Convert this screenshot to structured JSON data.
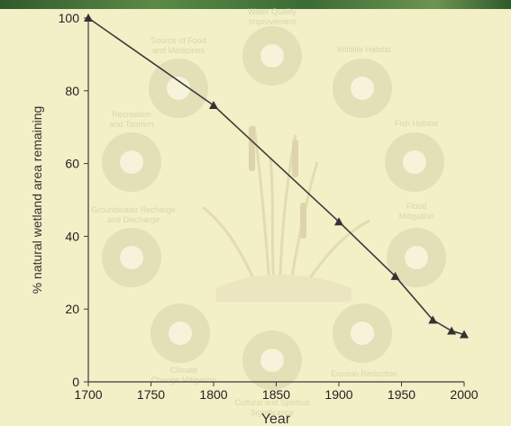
{
  "banner": {
    "color": "#3f6f38"
  },
  "colors": {
    "background": "#f3efc6",
    "line": "#3a3a3a",
    "icon_fill": "#e3dfb6",
    "icon_glyph": "#f6f3da",
    "label": "#d9d5ad"
  },
  "background_services": [
    {
      "label_lines": [
        "Water Quality",
        "Improvement"
      ],
      "icon": "water-drop-icon"
    },
    {
      "label_lines": [
        "Source of Food",
        "and Medicines"
      ],
      "icon": "food-hand-icon"
    },
    {
      "label_lines": [
        "Wildlife Habitat"
      ],
      "icon": "bird-icon"
    },
    {
      "label_lines": [
        "Recreation",
        "and Tourism"
      ],
      "icon": "canoe-icon"
    },
    {
      "label_lines": [
        "Fish Habitat"
      ],
      "icon": "fish-icon"
    },
    {
      "label_lines": [
        "Groundwater Recharge",
        "and Discharge"
      ],
      "icon": "groundwater-icon"
    },
    {
      "label_lines": [
        "Flood",
        "Mitigation"
      ],
      "icon": "house-icon"
    },
    {
      "label_lines": [
        "Climate",
        "Change Mitigation"
      ],
      "icon": "thermometer-icon"
    },
    {
      "label_lines": [
        "Erosion Reduction"
      ],
      "icon": "erosion-icon"
    },
    {
      "label_lines": [
        "Cultural and Spiritual",
        "Significance"
      ],
      "icon": "cultural-icon"
    }
  ],
  "chart_data": {
    "type": "line",
    "title": "",
    "xlabel": "Year",
    "ylabel": "% natural wetland area remaining",
    "x": [
      1700,
      1800,
      1900,
      1945,
      1975,
      1990,
      2000
    ],
    "series": [
      {
        "values": [
          100,
          76,
          44,
          29,
          17,
          14,
          13
        ]
      }
    ],
    "marker": "triangle",
    "xlim": [
      1700,
      2000
    ],
    "ylim": [
      0,
      100
    ],
    "xticks": [
      1700,
      1750,
      1800,
      1850,
      1900,
      1950,
      2000
    ],
    "yticks": [
      0,
      20,
      40,
      60,
      80,
      100
    ],
    "grid": false,
    "legend": "none"
  }
}
